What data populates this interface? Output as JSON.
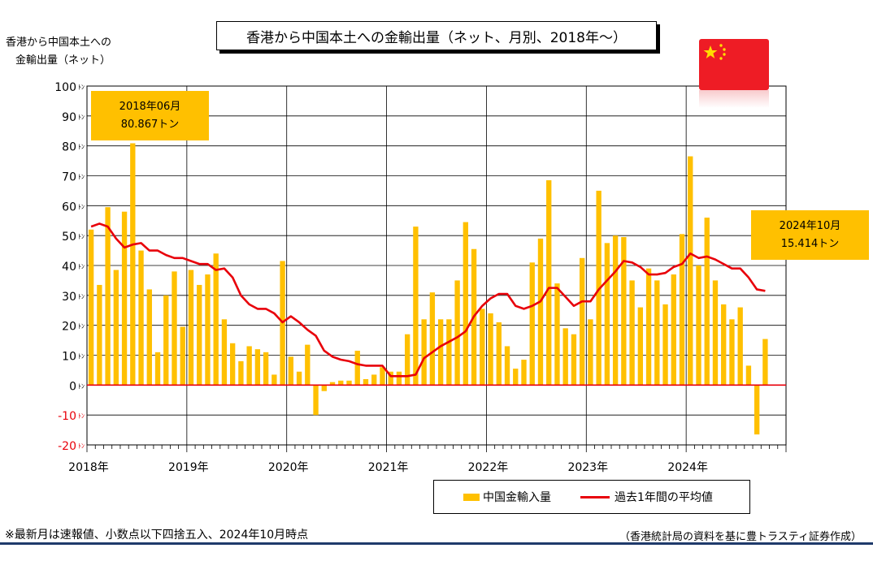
{
  "chart_title": "香港から中国本土への金輸出量（ネット、月別、2018年～）",
  "ylabel_line1": "香港から中国本土への",
  "ylabel_line2": "金輸出量（ネット）",
  "y_unit": "ﾄﾝ",
  "callouts": [
    {
      "line1": "2018年06月",
      "line2": "80.867トン"
    },
    {
      "line1": "2024年10月",
      "line2": "15.414トン"
    }
  ],
  "legend": {
    "bars": "中国金輸入量",
    "line": "過去1年間の平均値"
  },
  "footnote": "※最新月は速報値、小数点以下四捨五入、2024年10月時点",
  "source": "（香港統計局の資料を基に豊トラスティ証券作成）",
  "colors": {
    "bar": "#FFC000",
    "line": "#E8000A",
    "flag": "#EE1C25",
    "star": "#FFDE00"
  },
  "flag_icon": "china-flag-icon",
  "chart_data": {
    "type": "bar+line",
    "ylim": [
      -20,
      100
    ],
    "ytick_step": 10,
    "grid": true,
    "xtick_labels": [
      "2018年",
      "2019年",
      "2020年",
      "2021年",
      "2022年",
      "2023年",
      "2024年"
    ],
    "series": [
      {
        "name": "中国金輸入量",
        "type": "bar",
        "start": "2018-01",
        "values": [
          52,
          33.5,
          59.5,
          38.5,
          58,
          80.867,
          45,
          32,
          11,
          30,
          38,
          19.5,
          38.5,
          33.5,
          37,
          44,
          22,
          14,
          8,
          13,
          12,
          11,
          3.5,
          41.5,
          9.5,
          4.5,
          13.5,
          -10,
          -2,
          1,
          1.5,
          1.5,
          11.5,
          2,
          3.5,
          6,
          4.5,
          4.5,
          17,
          53,
          22,
          31,
          22,
          22,
          35,
          54.5,
          45.5,
          25.5,
          24,
          21,
          13,
          5.5,
          8.5,
          41,
          49,
          68.5,
          34,
          19,
          17,
          42.5,
          22,
          65,
          47.5,
          50,
          49.5,
          35,
          26,
          39,
          35,
          27,
          37,
          50.5,
          76.5,
          40,
          56,
          35,
          27,
          22,
          26,
          6.5,
          -16.5,
          15.414
        ]
      },
      {
        "name": "過去1年間の平均値",
        "type": "line",
        "start": "2018-01",
        "values": [
          53,
          54,
          53,
          49,
          46,
          47,
          47.5,
          45,
          45,
          43.5,
          42.5,
          42.5,
          41.5,
          40.5,
          40.5,
          38.5,
          39,
          36,
          30,
          27,
          25.5,
          25.5,
          24,
          21,
          23,
          21,
          18.5,
          16.5,
          11.5,
          9.5,
          8.5,
          8,
          7,
          6.5,
          6.5,
          6.5,
          3,
          3,
          3,
          3.5,
          9,
          11,
          13,
          14.5,
          16,
          18,
          23,
          26.5,
          29,
          30.5,
          30.5,
          26.5,
          25.5,
          26.5,
          28,
          32.5,
          32.5,
          29.5,
          26.5,
          28,
          28,
          32,
          35,
          38,
          41.5,
          41,
          39.5,
          37,
          37,
          37.5,
          39.5,
          40.5,
          44,
          42.5,
          43,
          42,
          40.5,
          39,
          39,
          36,
          32,
          31.5
        ]
      }
    ]
  }
}
